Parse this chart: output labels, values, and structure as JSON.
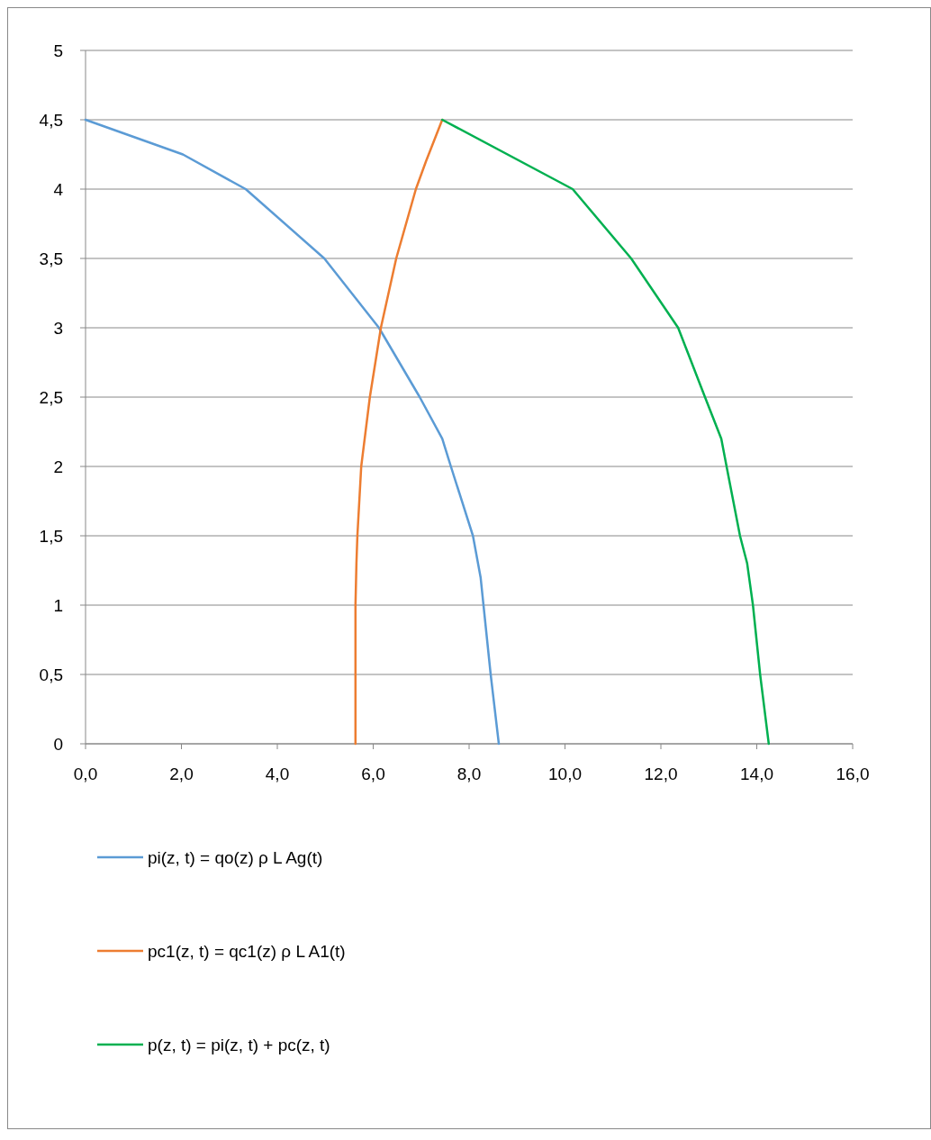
{
  "chart_data": {
    "type": "line",
    "xlim": [
      0,
      16
    ],
    "ylim": [
      0,
      5
    ],
    "xticks": [
      {
        "value": 0,
        "label": "0,0"
      },
      {
        "value": 2,
        "label": "2,0"
      },
      {
        "value": 4,
        "label": "4,0"
      },
      {
        "value": 6,
        "label": "6,0"
      },
      {
        "value": 8,
        "label": "8,0"
      },
      {
        "value": 10,
        "label": "10,0"
      },
      {
        "value": 12,
        "label": "12,0"
      },
      {
        "value": 14,
        "label": "14,0"
      },
      {
        "value": 16,
        "label": "16,0"
      }
    ],
    "yticks": [
      0,
      {
        "value": 0.5,
        "label": "0,5"
      },
      1,
      {
        "value": 1.5,
        "label": "1,5"
      },
      2,
      {
        "value": 2.5,
        "label": "2,5"
      },
      3,
      {
        "value": 3.5,
        "label": "3,5"
      },
      4,
      {
        "value": 4.5,
        "label": "4,5"
      },
      5
    ],
    "grid": "y",
    "legend": "bottom",
    "marker": "none",
    "line_style": "solid",
    "series": [
      {
        "name": "pi(z, t) = qo(z) ρ L Ag(t)",
        "color": "#5b9bd5",
        "x": [
          0,
          2.03,
          3.34,
          4.98,
          6.12,
          6.97,
          7.44,
          7.62,
          8.08,
          8.24,
          8.3,
          8.45,
          8.62
        ],
        "values": [
          4.5,
          4.25,
          4.0,
          3.5,
          3.0,
          2.5,
          2.2,
          2.0,
          1.5,
          1.2,
          1.0,
          0.5,
          0
        ]
      },
      {
        "name": "pc1(z, t) = qc1(z) ρ L A1(t)",
        "color": "#ed7d31",
        "x": [
          7.44,
          7.1,
          6.89,
          6.48,
          6.16,
          5.93,
          5.75,
          5.67,
          5.65,
          5.63,
          5.63
        ],
        "values": [
          4.5,
          4.2,
          4.0,
          3.5,
          3.0,
          2.5,
          2.0,
          1.5,
          1.3,
          1.0,
          0
        ]
      },
      {
        "name": "p(z, t) = pi(z, t) + pc(z, t)",
        "color": "#00b050",
        "x": [
          7.44,
          10.16,
          11.38,
          12.36,
          12.92,
          13.26,
          13.37,
          13.65,
          13.8,
          13.92,
          14.07,
          14.25
        ],
        "values": [
          4.5,
          4.0,
          3.5,
          3.0,
          2.5,
          2.2,
          2.0,
          1.5,
          1.3,
          1.0,
          0.5,
          0
        ]
      }
    ]
  }
}
